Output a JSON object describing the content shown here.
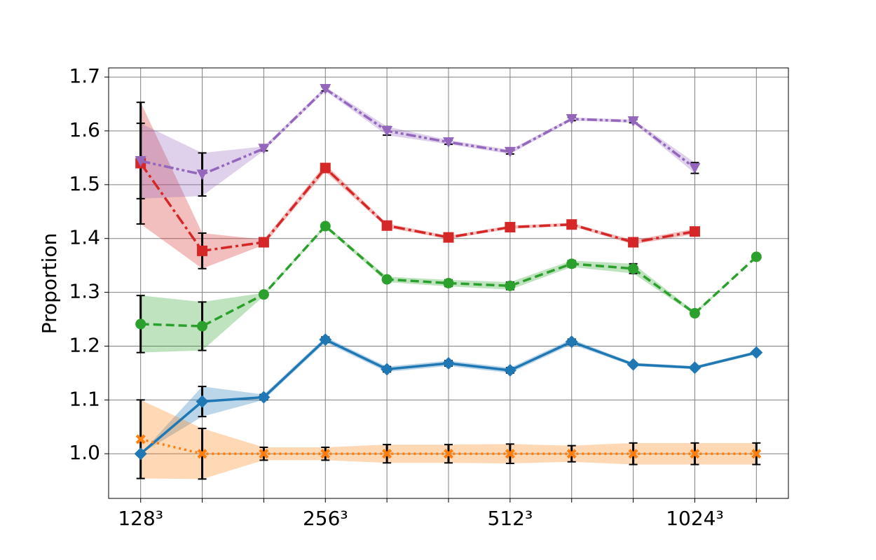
{
  "chart_data": {
    "type": "line",
    "ylabel": "Proportion",
    "categories": [
      "128³",
      null,
      null,
      "256³",
      null,
      null,
      "512³",
      null,
      null,
      "1024³",
      null
    ],
    "ylim": [
      0.917,
      1.717
    ],
    "yticks": [
      {
        "value": 1.0,
        "label": "1.0"
      },
      1.1,
      1.2,
      1.3,
      1.4,
      1.5,
      1.6,
      1.7
    ],
    "grid": true,
    "series": [
      {
        "color": "#1f77b4",
        "linestyle": "solid",
        "marker": "diamond",
        "values": [
          1.0,
          1.097,
          1.105,
          1.212,
          1.157,
          1.168,
          1.155,
          1.208,
          1.166,
          1.16,
          1.188
        ],
        "errors": [
          0,
          0.028,
          0.005,
          0.005,
          0.005,
          0.005,
          0.005,
          0.005,
          0.003,
          0.003,
          0.003
        ]
      },
      {
        "color": "#ff7f0e",
        "linestyle": "dotted",
        "marker": "x",
        "values": [
          1.027,
          1.0,
          1.0,
          1.0,
          1.0,
          1.0,
          1.0,
          1.0,
          1.0,
          1.0,
          1.0
        ],
        "errors": [
          0.073,
          0.047,
          0.012,
          0.012,
          0.017,
          0.017,
          0.018,
          0.015,
          0.02,
          0.02,
          0.02
        ]
      },
      {
        "color": "#2ca02c",
        "linestyle": "dashed",
        "marker": "circle",
        "values": [
          1.241,
          1.237,
          1.296,
          1.423,
          1.324,
          1.317,
          1.312,
          1.353,
          1.344,
          1.261,
          1.366
        ],
        "errors": [
          0.053,
          0.045,
          0.003,
          0.003,
          0.005,
          0.006,
          0.007,
          0.006,
          0.009,
          0.003,
          0
        ]
      },
      {
        "color": "#d62728",
        "linestyle": "dashdot",
        "marker": "square",
        "values": [
          1.54,
          1.377,
          1.393,
          1.531,
          1.424,
          1.402,
          1.421,
          1.426,
          1.393,
          1.413,
          null
        ],
        "errors": [
          0.113,
          0.033,
          0.005,
          0.007,
          0.004,
          0.003,
          0.003,
          0.003,
          0.004,
          0.005,
          null
        ]
      },
      {
        "color": "#9467bd",
        "linestyle": "dashdotdot",
        "marker": "triangle-down",
        "values": [
          1.544,
          1.519,
          1.567,
          1.678,
          1.6,
          1.579,
          1.561,
          1.622,
          1.618,
          1.531,
          null
        ],
        "errors": [
          0.07,
          0.04,
          0.004,
          0.004,
          0.008,
          0.004,
          0.004,
          0.003,
          0.003,
          0.01,
          null
        ]
      }
    ]
  }
}
